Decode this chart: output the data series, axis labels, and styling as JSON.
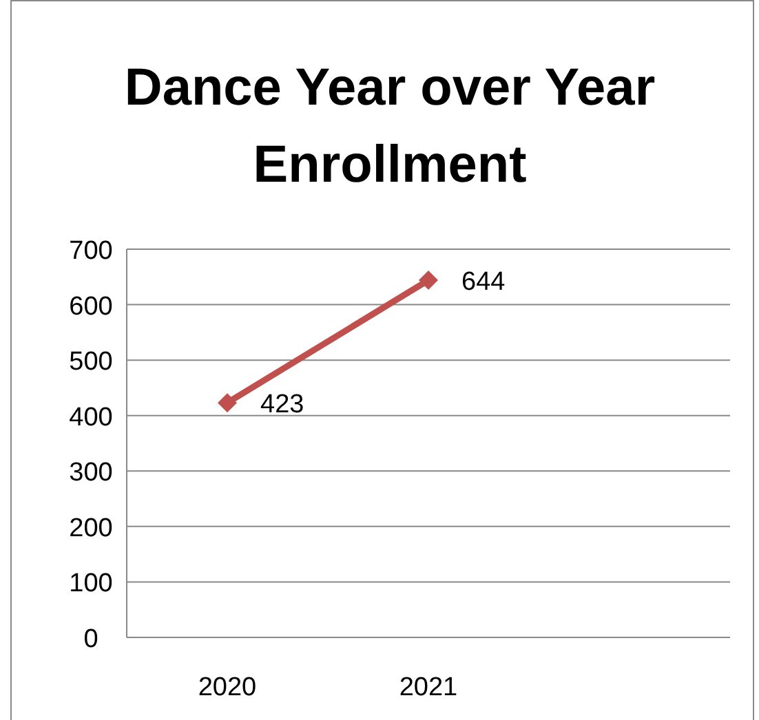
{
  "chart_data": {
    "type": "line",
    "title": "Dance Year over Year Enrollment",
    "categories": [
      "2020",
      "2021",
      null
    ],
    "series": [
      {
        "color": "#c0504d",
        "values": [
          423,
          644,
          null
        ]
      }
    ],
    "ylim": [
      0,
      700
    ],
    "yticks": [
      0,
      100,
      200,
      300,
      400,
      500,
      600,
      700
    ],
    "grid": "y",
    "marker": "diamond",
    "line_style": "solid",
    "data_labels": true
  }
}
